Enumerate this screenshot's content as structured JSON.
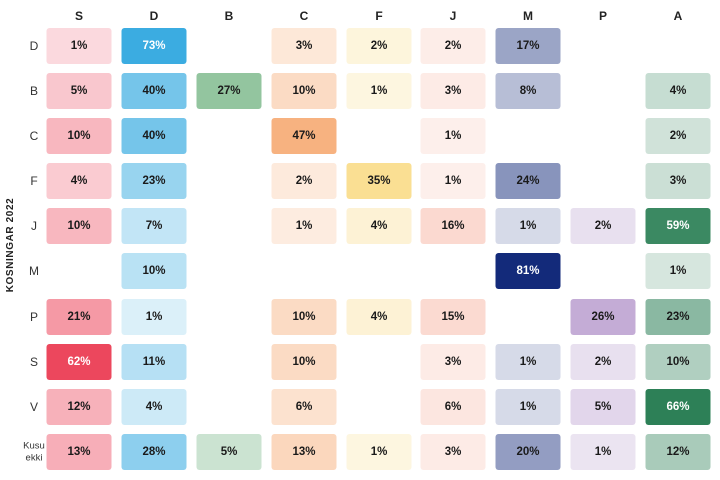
{
  "chart_data": {
    "type": "heatmap",
    "ylabel": "KOSNINGAR 2022",
    "columns": [
      "S",
      "D",
      "B",
      "C",
      "F",
      "J",
      "M",
      "P",
      "A"
    ],
    "rows": [
      {
        "label": "D",
        "values": [
          "1%",
          "73%",
          null,
          "3%",
          "2%",
          "2%",
          "17%",
          null,
          null
        ]
      },
      {
        "label": "B",
        "values": [
          "5%",
          "40%",
          "27%",
          "10%",
          "1%",
          "3%",
          "8%",
          null,
          "4%"
        ]
      },
      {
        "label": "C",
        "values": [
          "10%",
          "40%",
          null,
          "47%",
          null,
          "1%",
          null,
          null,
          "2%"
        ]
      },
      {
        "label": "F",
        "values": [
          "4%",
          "23%",
          null,
          "2%",
          "35%",
          "1%",
          "24%",
          null,
          "3%"
        ]
      },
      {
        "label": "J",
        "values": [
          "10%",
          "7%",
          null,
          "1%",
          "4%",
          "16%",
          "1%",
          "2%",
          "59%"
        ]
      },
      {
        "label": "M",
        "values": [
          null,
          "10%",
          null,
          null,
          null,
          null,
          "81%",
          null,
          "1%"
        ]
      },
      {
        "label": "P",
        "values": [
          "21%",
          "1%",
          null,
          "10%",
          "4%",
          "15%",
          null,
          "26%",
          "23%"
        ]
      },
      {
        "label": "S",
        "values": [
          "62%",
          "11%",
          null,
          "10%",
          null,
          "3%",
          "1%",
          "2%",
          "10%"
        ]
      },
      {
        "label": "V",
        "values": [
          "12%",
          "4%",
          null,
          "6%",
          null,
          "6%",
          "1%",
          "5%",
          "66%"
        ]
      },
      {
        "label": [
          "Kusu",
          "ekki"
        ],
        "values": [
          "13%",
          "28%",
          "5%",
          "13%",
          "1%",
          "3%",
          "20%",
          "1%",
          "12%"
        ]
      }
    ],
    "colors": {
      "S": "#e8203a",
      "D": "#27a4de",
      "B": "#2f8f46",
      "C": "#f4914a",
      "F": "#f6c94a",
      "J": "#f5a089",
      "M": "#0b2375",
      "P": "#8a5cae",
      "A": "#0a6b3b"
    }
  }
}
